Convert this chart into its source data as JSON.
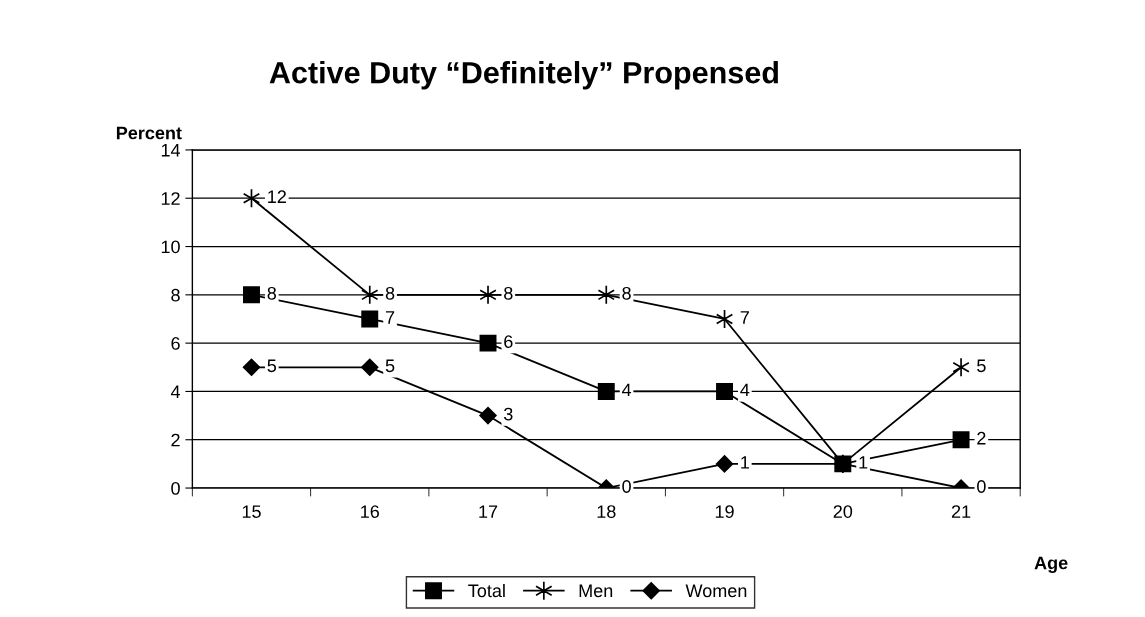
{
  "chart_data": {
    "type": "line",
    "title": "Active Duty “Definitely” Propensed",
    "ylabel": "Percent",
    "xlabel": "Age",
    "categories": [
      "15",
      "16",
      "17",
      "18",
      "19",
      "20",
      "21"
    ],
    "series": [
      {
        "name": "Total",
        "color": "#000000",
        "marker": "square",
        "values": [
          8,
          7,
          6,
          4,
          4,
          1,
          2
        ],
        "value_labels": [
          "8",
          "7",
          "6",
          "4",
          "4",
          null,
          "2"
        ]
      },
      {
        "name": "Men",
        "color": "#000000",
        "marker": "cross",
        "values": [
          12,
          8,
          8,
          8,
          7,
          1,
          5
        ],
        "value_labels": [
          "12",
          "8",
          "8",
          "8",
          "7",
          null,
          "5"
        ]
      },
      {
        "name": "Women",
        "color": "#000000",
        "marker": "diamond",
        "values": [
          5,
          5,
          3,
          0,
          1,
          1,
          0
        ],
        "value_labels": [
          "5",
          "5",
          "3",
          "0",
          "1",
          "1",
          "0"
        ]
      }
    ],
    "ylim": [
      0,
      14
    ],
    "yticks": [
      0,
      2,
      4,
      6,
      8,
      10,
      12,
      14
    ],
    "grid": "y",
    "legend": "bottom",
    "line_style": "solid"
  }
}
